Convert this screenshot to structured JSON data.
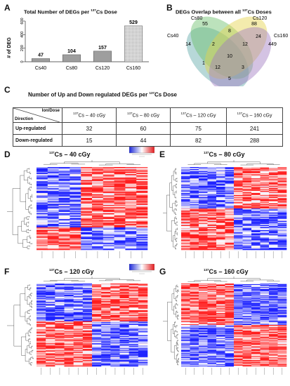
{
  "panel_labels": {
    "a": "A",
    "b": "B",
    "c": "C",
    "d": "D",
    "e": "E",
    "f": "F",
    "g": "G"
  },
  "panelA": {
    "title_pre": "Total Number of DEGs per ",
    "title_sup": "137",
    "title_post": "Cs Dose"
  },
  "chart_data": {
    "type": "bar",
    "categories": [
      "Cs40",
      "Cs80",
      "Cs120",
      "Cs160"
    ],
    "values": [
      47,
      104,
      157,
      529
    ],
    "ylabel": "# of DEG",
    "ylim": [
      0,
      600
    ],
    "yticks": [
      0,
      200,
      400,
      600
    ],
    "bar_colors": [
      "#9e9e9e",
      "#9e9e9e",
      "#9e9e9e",
      "#d6d6d6"
    ],
    "bar_pattern_last": "dotted"
  },
  "panelB": {
    "title_pre": "DEGs Overlap between all ",
    "title_sup": "137",
    "title_post": "Cs Doses",
    "sets": [
      {
        "name": "Cs40",
        "color": "#5fa8a8"
      },
      {
        "name": "Cs80",
        "color": "#6bbf6b"
      },
      {
        "name": "Cs120",
        "color": "#e5d34a"
      },
      {
        "name": "Cs160",
        "color": "#a07bc0"
      }
    ],
    "counts": {
      "cs80_only": "55",
      "cs120_only": "88",
      "cs80_cs120": "8",
      "cs40_only": "14",
      "cs160_only": "449",
      "cs40_cs80": "2",
      "cs80_cs120_cs160": "12",
      "cs120_cs160": "24",
      "center": "10",
      "cs40_cs160": "1",
      "cs40_cs80_cs160": "12",
      "cs40_cs120_cs160": "3",
      "cs40_cs80_cs120": "5"
    }
  },
  "panelC": {
    "title_pre": "Number of Up and Down regulated DEGs per ",
    "title_sup": "137",
    "title_post": "Cs Dose",
    "corner_top": "Ion/Dose",
    "corner_bottom": "Direction",
    "columns": [
      {
        "sup": "137",
        "text": "Cs – 40 cGy"
      },
      {
        "sup": "137",
        "text": "Cs – 80 cGy"
      },
      {
        "sup": "137",
        "text": "Cs – 120 cGy"
      },
      {
        "sup": "137",
        "text": "Cs – 160 cGy"
      }
    ],
    "rows": [
      {
        "label": "Up-regulated",
        "values": [
          "32",
          "60",
          "75",
          "241"
        ]
      },
      {
        "label": "Down-regulated",
        "values": [
          "15",
          "44",
          "82",
          "288"
        ]
      }
    ]
  },
  "heatmaps": [
    {
      "key": "d",
      "sup": "137",
      "title": "Cs – 40 cGy",
      "has_legend": true
    },
    {
      "key": "e",
      "sup": "137",
      "title": "Cs – 80 cGy",
      "has_legend": false
    },
    {
      "key": "f",
      "sup": "137",
      "title": "Cs – 120 cGy",
      "has_legend": true
    },
    {
      "key": "g",
      "sup": "137",
      "title": "Cs – 160 cGy",
      "has_legend": false
    }
  ],
  "colors": {
    "high": "#e2191c",
    "low": "#1b27d8",
    "mid": "#ffffff"
  }
}
